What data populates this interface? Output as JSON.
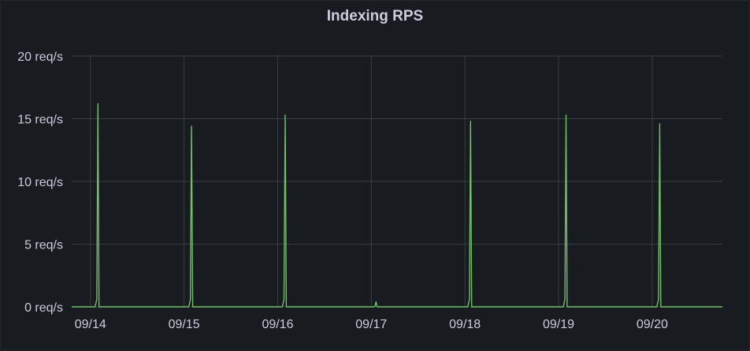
{
  "panel": {
    "title": "Indexing RPS"
  },
  "colors": {
    "background": "#181b1f",
    "grid": "#3a3d42",
    "series": "#73bf69",
    "text": "#ccccdc"
  },
  "chart_data": {
    "type": "line",
    "title": "Indexing RPS",
    "xlabel": "",
    "ylabel": "",
    "grid": true,
    "legend": "none",
    "ylim": [
      0,
      20
    ],
    "y_ticks": [
      {
        "value": 0,
        "label": "0 req/s"
      },
      {
        "value": 5,
        "label": "5 req/s"
      },
      {
        "value": 10,
        "label": "10 req/s"
      },
      {
        "value": 15,
        "label": "15 req/s"
      },
      {
        "value": 20,
        "label": "20 req/s"
      }
    ],
    "x_ticks": [
      "09/14",
      "09/15",
      "09/16",
      "09/17",
      "09/18",
      "09/19",
      "09/20"
    ],
    "xlim_days": [
      -0.2,
      6.75
    ],
    "series": [
      {
        "color": "#73bf69",
        "spikes": [
          {
            "day": 0.08,
            "value": 16.2
          },
          {
            "day": 1.08,
            "value": 14.4
          },
          {
            "day": 2.08,
            "value": 15.3
          },
          {
            "day": 3.05,
            "value": 0.4
          },
          {
            "day": 4.06,
            "value": 14.8
          },
          {
            "day": 5.08,
            "value": 15.3
          },
          {
            "day": 6.08,
            "value": 14.6
          }
        ]
      }
    ]
  }
}
